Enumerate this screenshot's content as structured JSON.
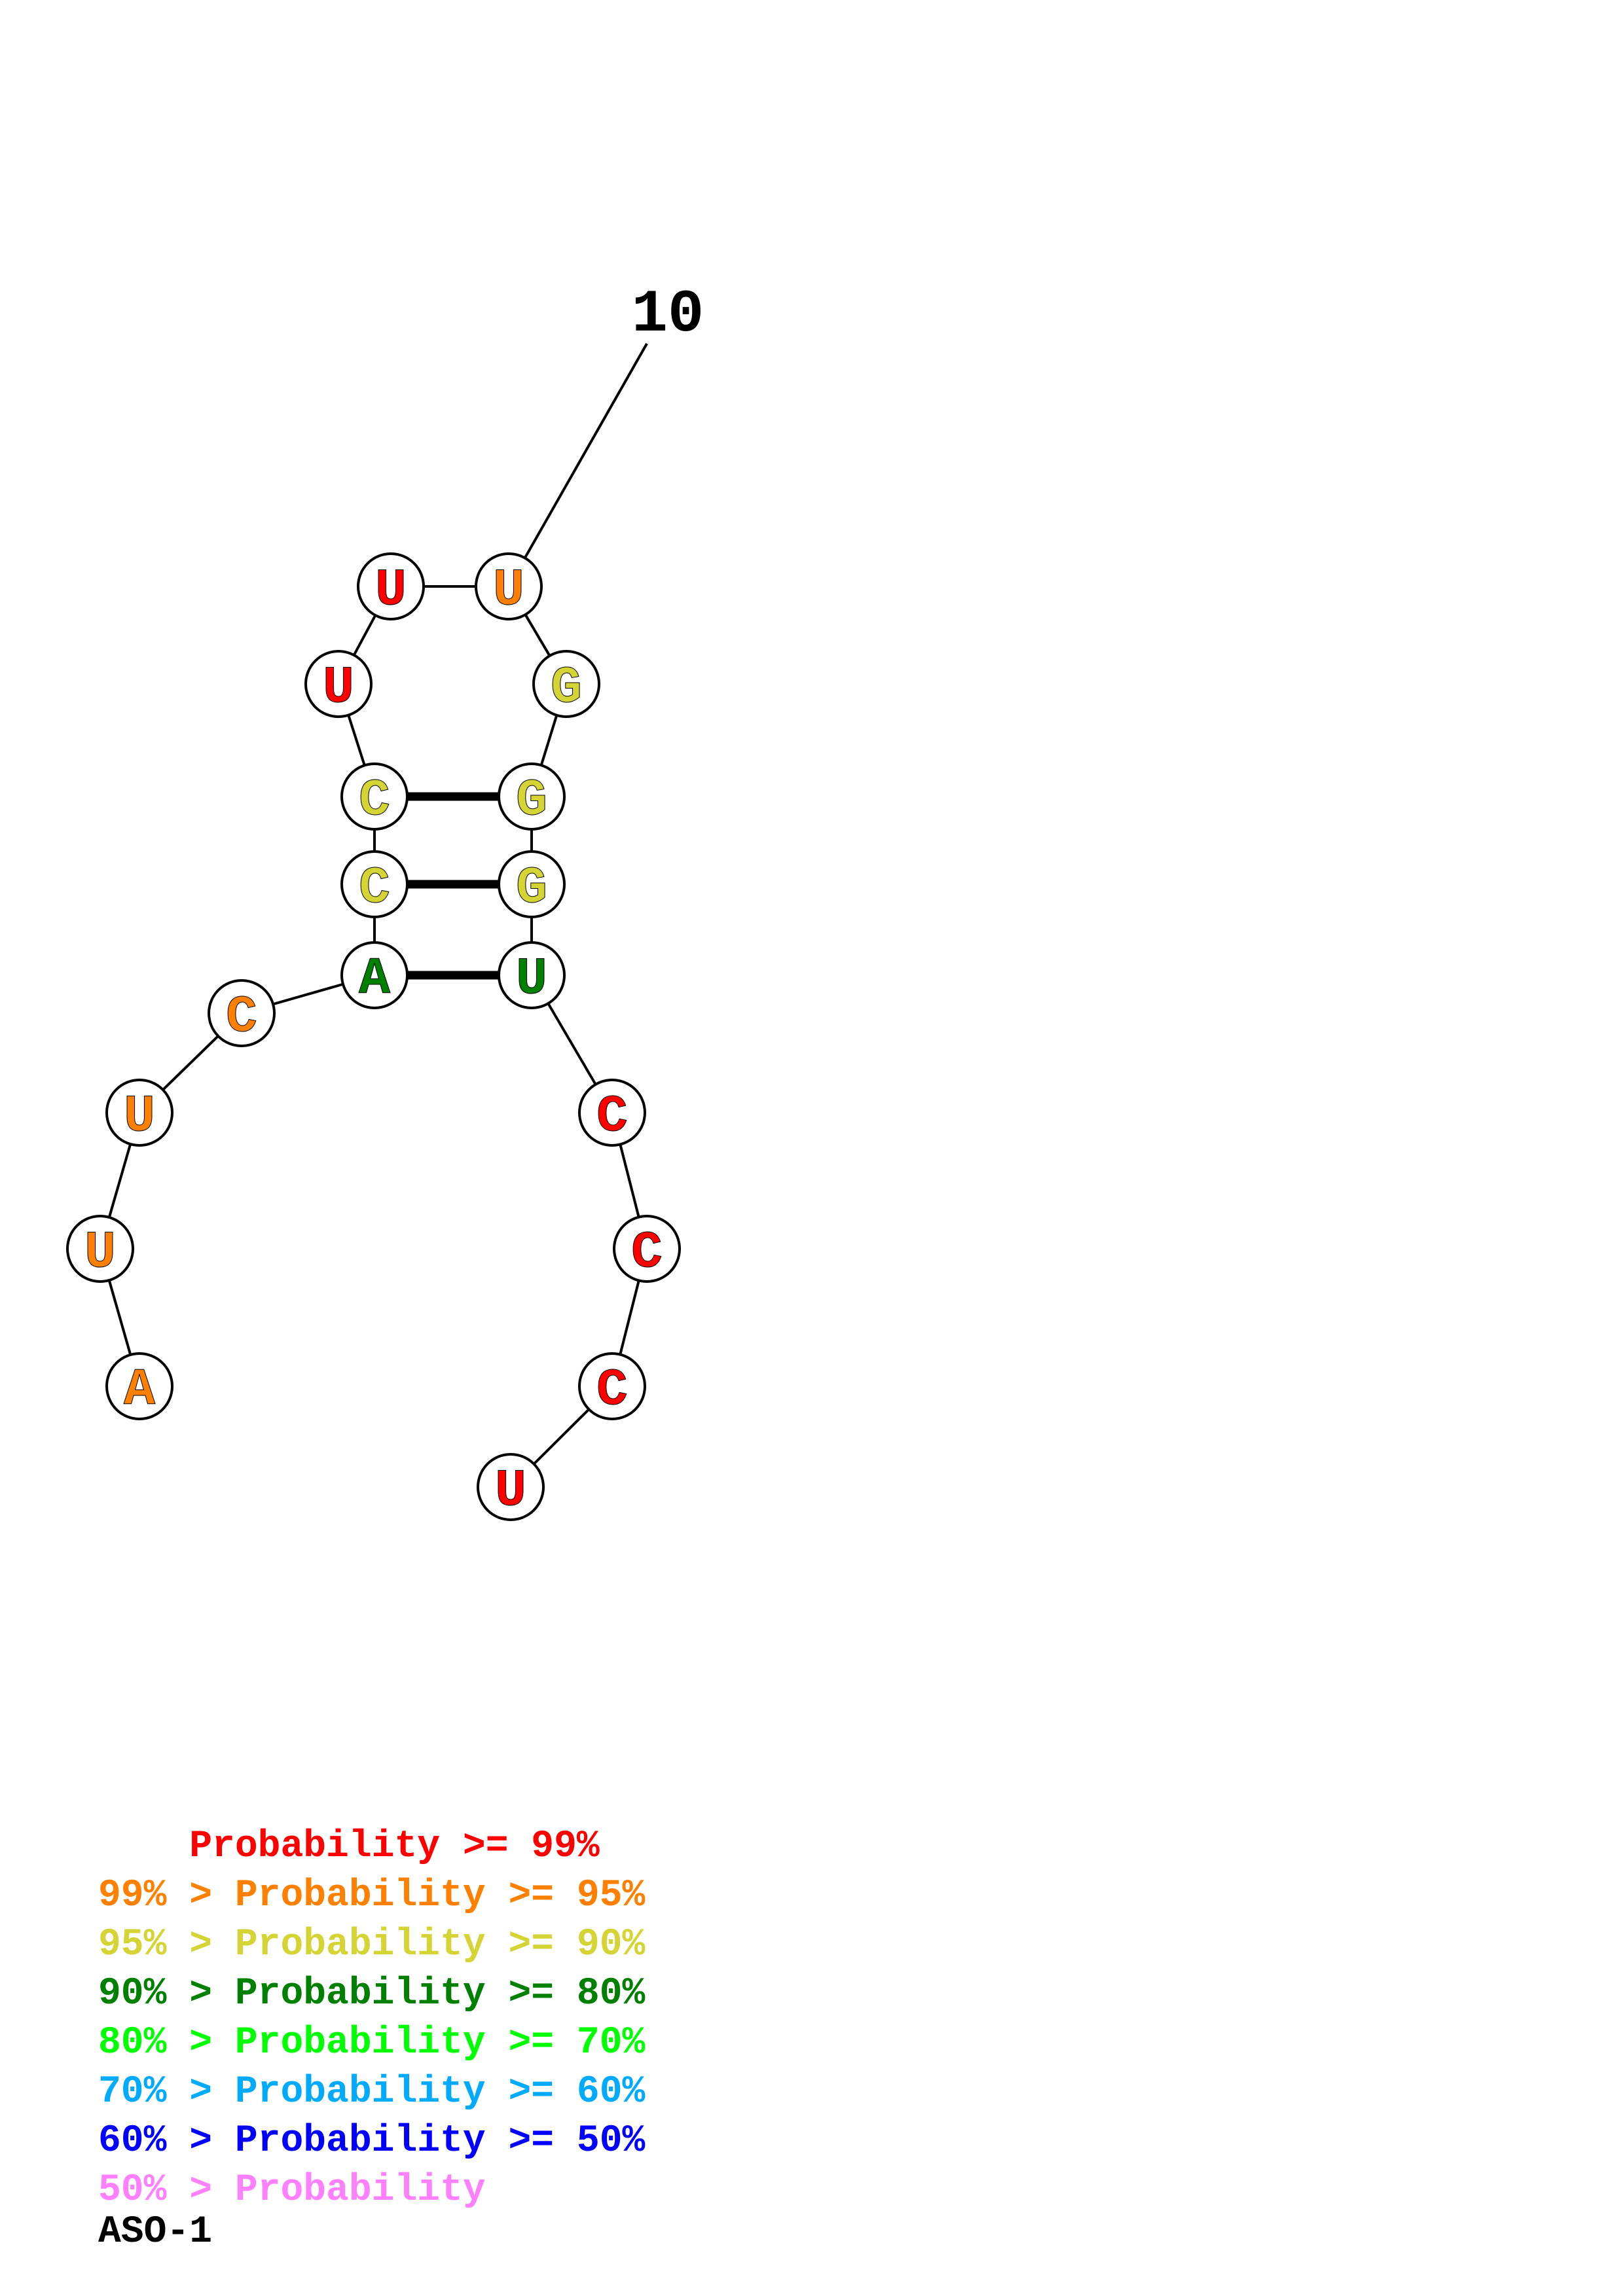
{
  "structure": {
    "name": "ASO-1",
    "tick_label": "10",
    "nucleotides": [
      {
        "index": 1,
        "base": "A",
        "color": "#ff8000"
      },
      {
        "index": 2,
        "base": "U",
        "color": "#ff8000"
      },
      {
        "index": 3,
        "base": "U",
        "color": "#ff8000"
      },
      {
        "index": 4,
        "base": "C",
        "color": "#ff8000"
      },
      {
        "index": 5,
        "base": "A",
        "color": "#008000"
      },
      {
        "index": 6,
        "base": "C",
        "color": "#d4d434"
      },
      {
        "index": 7,
        "base": "C",
        "color": "#d4d434"
      },
      {
        "index": 8,
        "base": "U",
        "color": "#ff0000"
      },
      {
        "index": 9,
        "base": "U",
        "color": "#ff0000"
      },
      {
        "index": 10,
        "base": "U",
        "color": "#ff8000"
      },
      {
        "index": 11,
        "base": "G",
        "color": "#d4d434"
      },
      {
        "index": 12,
        "base": "G",
        "color": "#d4d434"
      },
      {
        "index": 13,
        "base": "G",
        "color": "#d4d434"
      },
      {
        "index": 14,
        "base": "U",
        "color": "#008000"
      },
      {
        "index": 15,
        "base": "C",
        "color": "#ff0000"
      },
      {
        "index": 16,
        "base": "C",
        "color": "#ff0000"
      },
      {
        "index": 17,
        "base": "C",
        "color": "#ff0000"
      },
      {
        "index": 18,
        "base": "U",
        "color": "#ff0000"
      }
    ],
    "pairs": [
      [
        5,
        14
      ],
      [
        6,
        13
      ],
      [
        7,
        12
      ]
    ]
  },
  "legend": [
    {
      "text": "    Probability >= 99%",
      "color": "#ff0000"
    },
    {
      "text": "99% > Probability >= 95%",
      "color": "#ff8000"
    },
    {
      "text": "95% > Probability >= 90%",
      "color": "#d4d434"
    },
    {
      "text": "90% > Probability >= 80%",
      "color": "#008000"
    },
    {
      "text": "80% > Probability >= 70%",
      "color": "#00ff00"
    },
    {
      "text": "70% > Probability >= 60%",
      "color": "#00aaff"
    },
    {
      "text": "60% > Probability >= 50%",
      "color": "#0000ff"
    },
    {
      "text": "50% > Probability",
      "color": "#ff80ff"
    }
  ]
}
